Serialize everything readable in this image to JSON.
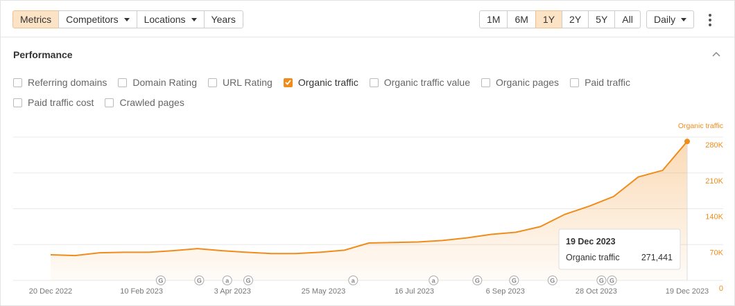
{
  "toolbar": {
    "tabs": [
      "Metrics",
      "Competitors",
      "Locations",
      "Years"
    ],
    "active_tab": 0,
    "ranges": [
      "1M",
      "6M",
      "1Y",
      "2Y",
      "5Y",
      "All"
    ],
    "active_range": 2,
    "interval": "Daily"
  },
  "panel": {
    "title": "Performance",
    "metrics": [
      {
        "label": "Referring domains",
        "checked": false
      },
      {
        "label": "Domain Rating",
        "checked": false
      },
      {
        "label": "URL Rating",
        "checked": false
      },
      {
        "label": "Organic traffic",
        "checked": true
      },
      {
        "label": "Organic traffic value",
        "checked": false
      },
      {
        "label": "Organic pages",
        "checked": false
      },
      {
        "label": "Paid traffic",
        "checked": false
      },
      {
        "label": "Paid traffic cost",
        "checked": false
      },
      {
        "label": "Crawled pages",
        "checked": false
      }
    ]
  },
  "chart_data": {
    "type": "line",
    "x": [
      "20 Dec 2022",
      "3 Jan 2023",
      "17 Jan 2023",
      "31 Jan 2023",
      "14 Feb 2023",
      "28 Feb 2023",
      "14 Mar 2023",
      "28 Mar 2023",
      "11 Apr 2023",
      "25 Apr 2023",
      "9 May 2023",
      "23 May 2023",
      "6 Jun 2023",
      "20 Jun 2023",
      "4 Jul 2023",
      "18 Jul 2023",
      "1 Aug 2023",
      "15 Aug 2023",
      "29 Aug 2023",
      "12 Sep 2023",
      "26 Sep 2023",
      "10 Oct 2023",
      "24 Oct 2023",
      "7 Nov 2023",
      "21 Nov 2023",
      "5 Dec 2023",
      "19 Dec 2023"
    ],
    "series": [
      {
        "name": "Organic traffic",
        "color": "#f08c1a",
        "values": [
          50000,
          48500,
          54000,
          55000,
          55000,
          58000,
          62000,
          58000,
          55000,
          52500,
          52500,
          55000,
          59000,
          73000,
          74000,
          75000,
          78000,
          83000,
          90000,
          94000,
          105000,
          129000,
          145000,
          164000,
          202000,
          215000,
          271441
        ],
        "value_labels": [
          null,
          null,
          null,
          null,
          null,
          null,
          null,
          null,
          null,
          null,
          null,
          null,
          null,
          null,
          null,
          null,
          null,
          null,
          null,
          null,
          null,
          null,
          null,
          null,
          null,
          null,
          "271,441"
        ]
      }
    ],
    "xlim": [
      "20 Dec 2022",
      "19 Dec 2023"
    ],
    "xticks": [
      "20 Dec 2022",
      "10 Feb 2023",
      "3 Apr 2023",
      "25 May 2023",
      "16 Jul 2023",
      "6 Sep 2023",
      "28 Oct 2023",
      "19 Dec 2023"
    ],
    "ylim": [
      0,
      280000
    ],
    "yticks": [
      0,
      {
        "value": 70000,
        "label": "70K"
      },
      {
        "value": 140000,
        "label": "140K"
      },
      {
        "value": 210000,
        "label": "210K"
      },
      {
        "value": 280000,
        "label": "280K"
      }
    ],
    "grid": true,
    "annotations": [
      {
        "x": "21 Feb 2023",
        "label": "G"
      },
      {
        "x": "15 Mar 2023",
        "label": "G"
      },
      {
        "x": "31 Mar 2023",
        "label": "a"
      },
      {
        "x": "12 Apr 2023",
        "label": "G"
      },
      {
        "x": "11 Jun 2023",
        "label": "a"
      },
      {
        "x": "27 Jul 2023",
        "label": "a"
      },
      {
        "x": "21 Aug 2023",
        "label": "G"
      },
      {
        "x": "11 Sep 2023",
        "label": "G"
      },
      {
        "x": "3 Oct 2023",
        "label": "G"
      },
      {
        "x": "31 Oct 2023",
        "label": "G"
      },
      {
        "x": "6 Nov 2023",
        "label": "G"
      }
    ]
  }
}
